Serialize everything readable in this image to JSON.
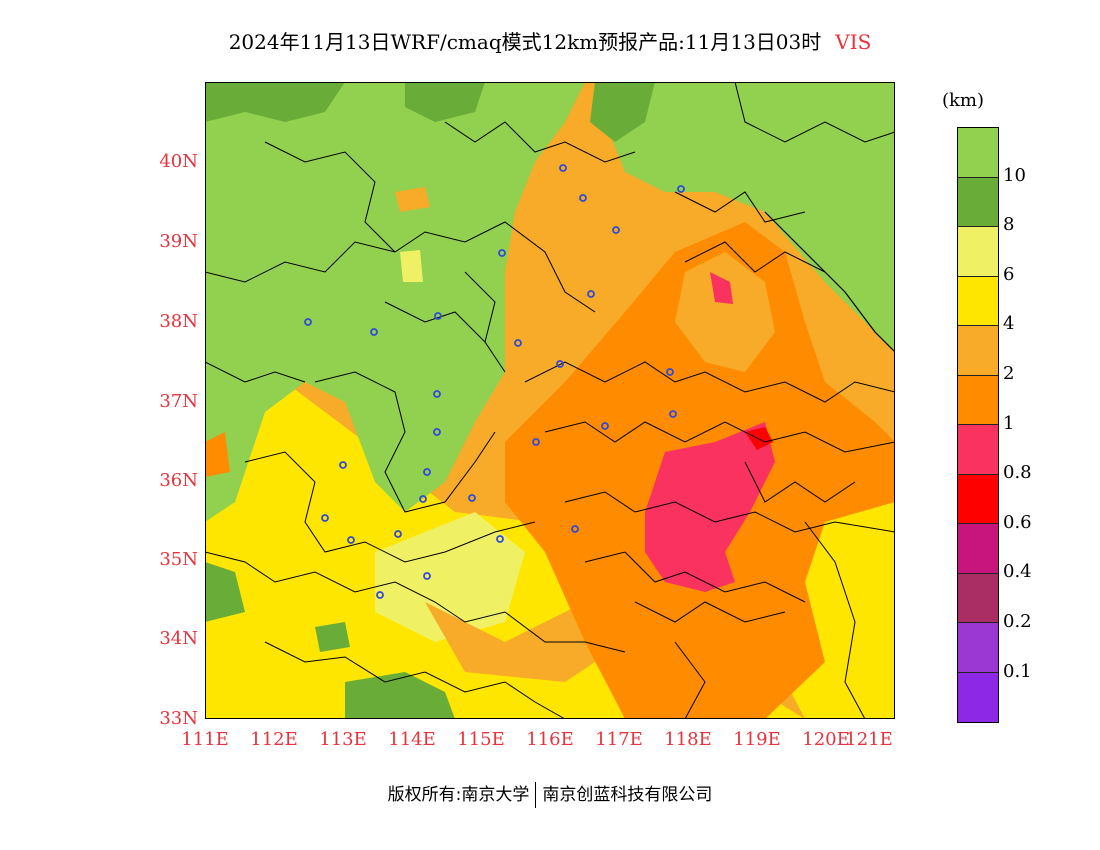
{
  "title": {
    "text": "2024年11月13日WRF/cmaq模式12km预报产品:11月13日03时",
    "variable": "VIS"
  },
  "map": {
    "y_ticks": [
      "40N",
      "39N",
      "38N",
      "37N",
      "36N",
      "35N",
      "34N",
      "33N"
    ],
    "x_ticks": [
      "111E",
      "112E",
      "113E",
      "114E",
      "115E",
      "116E",
      "117E",
      "118E",
      "119E",
      "120E",
      "121E"
    ]
  },
  "legend": {
    "unit": "(km)",
    "colors": [
      "#92d050",
      "#6aac38",
      "#f0f064",
      "#ffe600",
      "#f7ab29",
      "#ff8c00",
      "#fa3260",
      "#ff0000",
      "#c8147d",
      "#aa2d64",
      "#9b37d2",
      "#8c28e6"
    ],
    "labels": [
      "10",
      "8",
      "6",
      "4",
      "2",
      "1",
      "0.8",
      "0.6",
      "0.4",
      "0.2",
      "0.1"
    ]
  },
  "footer": {
    "left": "版权所有:南京大学",
    "right": "南京创蓝科技有限公司"
  }
}
